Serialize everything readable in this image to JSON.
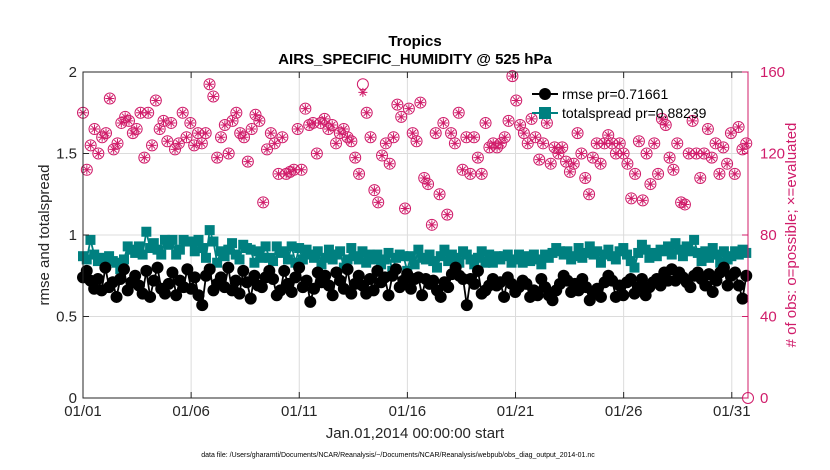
{
  "chart_data": {
    "type": "line",
    "title": "Tropics",
    "subtitle": "AIRS_SPECIFIC_HUMIDITY @ 525 hPa",
    "xlabel": "Jan.01,2014 00:00:00 start",
    "ylabel": "rmse and totalspread",
    "y2label": "# of obs: o=possible; ×=evaluated",
    "footnote": "data file: /Users/gharamti/Documents/NCAR/Reanalysis/~/Documents/NCAR/Reanalysis/webpub/obs_diag_output_2014-01.nc",
    "xlim": [
      1,
      31.75
    ],
    "ylim": [
      0,
      2
    ],
    "y2lim": [
      0,
      160
    ],
    "x_tick_values": [
      1,
      6,
      11,
      16,
      21,
      26,
      31
    ],
    "x_tick_labels": [
      "01/01",
      "01/06",
      "01/11",
      "01/16",
      "01/21",
      "01/26",
      "01/31"
    ],
    "y_tick_labels": [
      "0",
      "0.5",
      "1",
      "1.5",
      "2"
    ],
    "y2_tick_labels": [
      "0",
      "40",
      "80",
      "120",
      "160"
    ],
    "legend_position": "top-right",
    "colors": {
      "rmse": "#000000",
      "totalspread": "#008080",
      "obs": "#d01c6a"
    },
    "series": [
      {
        "name": "rmse",
        "legend": "rmse pr=0.71661",
        "values": [
          0.74,
          0.78,
          0.72,
          0.67,
          0.73,
          0.66,
          0.8,
          0.68,
          0.71,
          0.62,
          0.73,
          0.79,
          0.66,
          0.71,
          0.75,
          0.69,
          0.64,
          0.78,
          0.62,
          0.72,
          0.8,
          0.67,
          0.64,
          0.7,
          0.77,
          0.63,
          0.72,
          0.68,
          0.79,
          0.67,
          0.74,
          0.63,
          0.57,
          0.75,
          0.79,
          0.66,
          0.7,
          0.74,
          0.68,
          0.8,
          0.66,
          0.72,
          0.64,
          0.78,
          0.71,
          0.61,
          0.75,
          0.69,
          0.68,
          0.74,
          0.78,
          0.73,
          0.63,
          0.66,
          0.78,
          0.7,
          0.65,
          0.74,
          0.8,
          0.68,
          0.72,
          0.59,
          0.67,
          0.77,
          0.71,
          0.75,
          0.69,
          0.63,
          0.77,
          0.72,
          0.67,
          0.79,
          0.64,
          0.7,
          0.75,
          0.69,
          0.64,
          0.73,
          0.66,
          0.78,
          0.71,
          0.74,
          0.63,
          0.75,
          0.79,
          0.68,
          0.72,
          0.76,
          0.67,
          0.73,
          0.74,
          0.63,
          0.73,
          0.7,
          0.72,
          0.66,
          0.62,
          0.71,
          0.68,
          0.76,
          0.8,
          0.75,
          0.73,
          0.57,
          0.73,
          0.7,
          0.78,
          0.64,
          0.66,
          0.69,
          0.73,
          0.69,
          0.71,
          0.62,
          0.74,
          0.7,
          0.65,
          0.68,
          0.72,
          0.7,
          0.62,
          0.66,
          0.63,
          0.73,
          0.68,
          0.63,
          0.6,
          0.66,
          0.7,
          0.75,
          0.72,
          0.65,
          0.7,
          0.66,
          0.73,
          0.68,
          0.6,
          0.64,
          0.67,
          0.62,
          0.71,
          0.75,
          0.72,
          0.62,
          0.69,
          0.63,
          0.71,
          0.73,
          0.64,
          0.68,
          0.73,
          0.63,
          0.68,
          0.71,
          0.73,
          0.69,
          0.77,
          0.72,
          0.79,
          0.72,
          0.77,
          0.74,
          0.71,
          0.68,
          0.75,
          0.77,
          0.73,
          0.69,
          0.76,
          0.65,
          0.72,
          0.77,
          0.8,
          0.69,
          0.75,
          0.77,
          0.69,
          0.61,
          0.75
        ]
      },
      {
        "name": "totalspread",
        "legend": "totalspread pr=0.88239",
        "values": [
          0.87,
          0.85,
          0.97,
          0.88,
          0.84,
          0.86,
          0.81,
          0.87,
          0.84,
          0.83,
          0.79,
          0.85,
          0.93,
          0.91,
          0.89,
          0.93,
          0.88,
          1.02,
          0.92,
          0.95,
          0.91,
          0.88,
          0.97,
          0.94,
          0.97,
          0.88,
          0.91,
          0.97,
          0.96,
          0.96,
          0.9,
          0.97,
          0.92,
          0.86,
          1.03,
          0.96,
          0.83,
          0.9,
          0.87,
          0.91,
          0.95,
          0.88,
          0.85,
          0.94,
          0.92,
          0.91,
          0.83,
          0.9,
          0.86,
          0.93,
          0.86,
          0.84,
          0.93,
          0.89,
          0.9,
          0.85,
          0.93,
          0.83,
          0.92,
          0.85,
          0.91,
          0.88,
          0.86,
          0.9,
          0.82,
          0.86,
          0.91,
          0.85,
          0.88,
          0.9,
          0.8,
          0.85,
          0.92,
          0.87,
          0.85,
          0.9,
          0.83,
          0.88,
          0.85,
          0.88,
          0.82,
          0.85,
          0.89,
          0.78,
          0.86,
          0.88,
          0.87,
          0.78,
          0.87,
          0.82,
          0.91,
          0.86,
          0.85,
          0.88,
          0.84,
          0.8,
          0.87,
          0.91,
          0.84,
          0.88,
          0.86,
          0.83,
          0.9,
          0.88,
          0.85,
          0.82,
          0.86,
          0.9,
          0.83,
          0.88,
          0.83,
          0.87,
          0.85,
          0.87,
          0.88,
          0.83,
          0.85,
          0.88,
          0.83,
          0.87,
          0.84,
          0.88,
          0.85,
          0.82,
          0.88,
          0.86,
          0.89,
          0.92,
          0.9,
          0.88,
          0.9,
          0.85,
          0.87,
          0.92,
          0.86,
          0.89,
          0.93,
          0.88,
          0.9,
          0.83,
          0.88,
          0.91,
          0.87,
          0.85,
          0.9,
          0.92,
          0.88,
          0.84,
          0.8,
          0.89,
          0.94,
          0.91,
          0.86,
          0.89,
          0.87,
          0.91,
          0.9,
          0.93,
          0.88,
          0.95,
          0.91,
          0.87,
          0.93,
          0.9,
          0.97,
          0.89,
          0.84,
          0.9,
          0.86,
          0.92,
          0.88,
          0.83,
          0.9,
          0.85,
          0.87,
          0.9,
          0.88,
          0.91,
          0.89
        ]
      },
      {
        "name": "obs possible",
        "marker": "circle",
        "axis": "right",
        "values": [
          140,
          112,
          124,
          132,
          120,
          128,
          130,
          147,
          122,
          125,
          135,
          138,
          136,
          130,
          132,
          140,
          118,
          140,
          124,
          146,
          132,
          136,
          126,
          135,
          122,
          125,
          140,
          128,
          135,
          124,
          130,
          125,
          130,
          154,
          148,
          118,
          128,
          134,
          120,
          136,
          140,
          130,
          128,
          116,
          132,
          139,
          136,
          96,
          122,
          130,
          125,
          110,
          128,
          110,
          111,
          112,
          132,
          112,
          142,
          134,
          135,
          120,
          135,
          137,
          132,
          134,
          125,
          130,
          132,
          128,
          126,
          118,
          110,
          154,
          140,
          128,
          102,
          96,
          119,
          125,
          115,
          128,
          144,
          138,
          93,
          142,
          130,
          126,
          145,
          108,
          105,
          85,
          130,
          100,
          135,
          90,
          130,
          125,
          140,
          112,
          128,
          110,
          128,
          118,
          110,
          135,
          123,
          125,
          123,
          125,
          128,
          136,
          158,
          146,
          134,
          130,
          125,
          137,
          128,
          117,
          125,
          135,
          115,
          123,
          120,
          123,
          116,
          111,
          115,
          130,
          120,
          108,
          100,
          118,
          125,
          115,
          125,
          129,
          125,
          120,
          125,
          120,
          115,
          98,
          110,
          126,
          97,
          120,
          105,
          125,
          110,
          137,
          134,
          118,
          112,
          125,
          96,
          95,
          120,
          136,
          120,
          108,
          120,
          132,
          118,
          125,
          110,
          123,
          115,
          130,
          110,
          133,
          122,
          125
        ]
      },
      {
        "name": "obs evaluated",
        "marker": "asterisk",
        "axis": "right",
        "values": [
          140,
          112,
          124,
          132,
          120,
          128,
          130,
          147,
          122,
          125,
          135,
          138,
          136,
          130,
          132,
          140,
          118,
          140,
          124,
          146,
          132,
          136,
          126,
          135,
          122,
          125,
          140,
          128,
          135,
          124,
          130,
          125,
          130,
          154,
          148,
          118,
          128,
          134,
          120,
          136,
          140,
          130,
          128,
          116,
          132,
          139,
          136,
          96,
          122,
          130,
          125,
          110,
          128,
          110,
          111,
          112,
          132,
          112,
          142,
          134,
          135,
          120,
          135,
          137,
          132,
          134,
          125,
          130,
          132,
          128,
          126,
          118,
          110,
          150,
          140,
          128,
          102,
          96,
          119,
          125,
          115,
          128,
          144,
          138,
          93,
          142,
          130,
          126,
          145,
          108,
          105,
          85,
          130,
          100,
          135,
          90,
          130,
          125,
          140,
          112,
          128,
          110,
          128,
          118,
          110,
          135,
          123,
          125,
          123,
          125,
          128,
          136,
          158,
          146,
          134,
          130,
          125,
          137,
          128,
          117,
          125,
          135,
          115,
          123,
          120,
          123,
          116,
          111,
          115,
          130,
          120,
          108,
          100,
          118,
          125,
          115,
          125,
          129,
          125,
          120,
          125,
          120,
          115,
          98,
          110,
          126,
          97,
          120,
          105,
          125,
          110,
          137,
          134,
          118,
          112,
          125,
          96,
          95,
          120,
          136,
          120,
          108,
          120,
          132,
          118,
          125,
          110,
          123,
          115,
          130,
          110,
          133,
          122,
          125
        ]
      }
    ]
  }
}
